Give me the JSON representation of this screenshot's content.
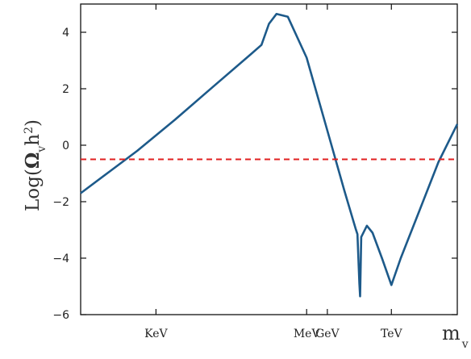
{
  "chart_data": {
    "type": "line",
    "title": "",
    "xlabel": {
      "main": "m",
      "sub": "v"
    },
    "ylabel": {
      "prefix": "Log(",
      "omega": "Ω",
      "omega_sub": "v",
      "h": "h",
      "sup": "2",
      "suffix": ")"
    },
    "ylim": [
      -6,
      5
    ],
    "xlim": [
      0,
      10
    ],
    "yticks": [
      4,
      2,
      0,
      -2,
      -4,
      -6
    ],
    "ytick_labels": [
      "4",
      "2",
      "0",
      "−2",
      "−4",
      "−6"
    ],
    "xtick_positions": [
      2,
      6,
      6.55,
      8.25
    ],
    "xtick_labels": [
      "KeV",
      "MeV",
      "GeV",
      "TeV"
    ],
    "grid": false,
    "colors": {
      "curve": "#1d5a8a",
      "reference": "#e02020"
    },
    "series": [
      {
        "x": [
          0,
          0.8,
          1.5,
          2.5,
          3.5,
          4.5,
          4.8,
          5.0,
          5.2,
          5.5,
          6.0,
          6.5,
          7.0,
          7.3,
          7.35,
          7.4,
          7.42,
          7.45,
          7.6,
          7.75,
          8.0,
          8.25,
          8.5,
          9.0,
          9.5,
          10.0
        ],
        "y": [
          -1.7,
          -0.9,
          -0.2,
          0.9,
          2.05,
          3.2,
          3.55,
          4.3,
          4.65,
          4.55,
          3.1,
          0.75,
          -1.6,
          -2.95,
          -3.15,
          -4.9,
          -5.35,
          -3.25,
          -2.85,
          -3.1,
          -4.0,
          -4.95,
          -4.0,
          -2.3,
          -0.6,
          0.75
        ]
      },
      {
        "x": [
          0,
          10
        ],
        "y": [
          -0.5,
          -0.5
        ],
        "style": "dashed"
      }
    ]
  }
}
